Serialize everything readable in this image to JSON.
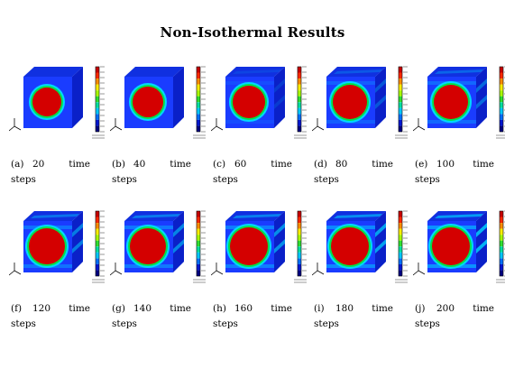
{
  "title": "Non-Isothermal Results",
  "panels": [
    {
      "label": "(a)",
      "steps": "20",
      "unit1": "time",
      "unit2": "steps"
    },
    {
      "label": "(b)",
      "steps": "40",
      "unit1": "time",
      "unit2": "steps"
    },
    {
      "label": "(c)",
      "steps": "60",
      "unit1": "time",
      "unit2": "steps"
    },
    {
      "label": "(d)",
      "steps": "80",
      "unit1": "time",
      "unit2": "steps"
    },
    {
      "label": "(e)",
      "steps": "100",
      "unit1": "time",
      "unit2": "steps"
    },
    {
      "label": "(f)",
      "steps": "120",
      "unit1": "time",
      "unit2": "steps"
    },
    {
      "label": "(g)",
      "steps": "140",
      "unit1": "time",
      "unit2": "steps"
    },
    {
      "label": "(h)",
      "steps": "160",
      "unit1": "time",
      "unit2": "steps"
    },
    {
      "label": "(i)",
      "steps": "180",
      "unit1": "time",
      "unit2": "steps"
    },
    {
      "label": "(j)",
      "steps": "200",
      "unit1": "time",
      "unit2": "steps"
    }
  ],
  "colors": {
    "cube_face": "#1a3cff",
    "cube_top": "#1030e0",
    "cube_side": "#0a20c8",
    "hot_core": "#d40000",
    "ring_mid": "#00e04a",
    "ring_outer": "#00d8ff",
    "colorbar": [
      "#c80000",
      "#ff2a00",
      "#ff8c00",
      "#ffee00",
      "#aaff00",
      "#30e030",
      "#00e0a0",
      "#00c8ff",
      "#0070ff",
      "#0018d0",
      "#000080"
    ]
  }
}
